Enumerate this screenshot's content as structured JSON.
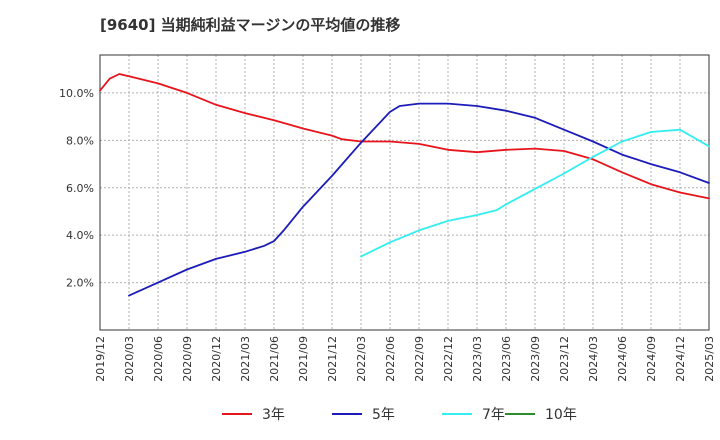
{
  "chart_data": {
    "type": "line",
    "title": "[9640]  当期純利益マージンの平均値の推移",
    "xlabel": "",
    "ylabel": "",
    "ylim": [
      0,
      11.6
    ],
    "y_ticks": [
      {
        "value": 2,
        "label": "2.0%"
      },
      {
        "value": 4,
        "label": "4.0%"
      },
      {
        "value": 6,
        "label": "6.0%"
      },
      {
        "value": 8,
        "label": "8.0%"
      },
      {
        "value": 10,
        "label": "10.0%"
      }
    ],
    "x_tick_labels": [
      "2019/12",
      "2020/03",
      "2020/06",
      "2020/09",
      "2020/12",
      "2021/03",
      "2021/06",
      "2021/09",
      "2021/12",
      "2022/03",
      "2022/06",
      "2022/09",
      "2022/12",
      "2023/03",
      "2023/06",
      "2023/09",
      "2023/12",
      "2024/03",
      "2024/06",
      "2024/09",
      "2024/12",
      "2025/03"
    ],
    "grid": true,
    "legend_position": "bottom",
    "series": [
      {
        "name": "3年",
        "color": "#e8141b",
        "points": [
          [
            "2019/12",
            10.1
          ],
          [
            "2020/01",
            10.6
          ],
          [
            "2020/02",
            10.8
          ],
          [
            "2020/03",
            10.7
          ],
          [
            "2020/06",
            10.4
          ],
          [
            "2020/09",
            10.0
          ],
          [
            "2020/12",
            9.5
          ],
          [
            "2021/03",
            9.15
          ],
          [
            "2021/06",
            8.85
          ],
          [
            "2021/09",
            8.5
          ],
          [
            "2021/12",
            8.2
          ],
          [
            "2022/01",
            8.05
          ],
          [
            "2022/03",
            7.95
          ],
          [
            "2022/06",
            7.95
          ],
          [
            "2022/09",
            7.85
          ],
          [
            "2022/12",
            7.6
          ],
          [
            "2023/03",
            7.5
          ],
          [
            "2023/06",
            7.6
          ],
          [
            "2023/09",
            7.65
          ],
          [
            "2023/12",
            7.55
          ],
          [
            "2024/03",
            7.2
          ],
          [
            "2024/06",
            6.65
          ],
          [
            "2024/09",
            6.15
          ],
          [
            "2024/12",
            5.8
          ],
          [
            "2025/03",
            5.55
          ]
        ]
      },
      {
        "name": "5年",
        "color": "#1c1cb9",
        "points": [
          [
            "2020/03",
            1.45
          ],
          [
            "2020/06",
            2.0
          ],
          [
            "2020/09",
            2.55
          ],
          [
            "2020/12",
            3.0
          ],
          [
            "2021/03",
            3.3
          ],
          [
            "2021/05",
            3.55
          ],
          [
            "2021/06",
            3.75
          ],
          [
            "2021/07",
            4.2
          ],
          [
            "2021/09",
            5.2
          ],
          [
            "2021/12",
            6.5
          ],
          [
            "2022/03",
            7.9
          ],
          [
            "2022/06",
            9.2
          ],
          [
            "2022/07",
            9.45
          ],
          [
            "2022/09",
            9.55
          ],
          [
            "2022/12",
            9.55
          ],
          [
            "2023/03",
            9.45
          ],
          [
            "2023/06",
            9.25
          ],
          [
            "2023/09",
            8.95
          ],
          [
            "2023/12",
            8.45
          ],
          [
            "2024/03",
            7.95
          ],
          [
            "2024/06",
            7.4
          ],
          [
            "2024/09",
            7.0
          ],
          [
            "2024/12",
            6.65
          ],
          [
            "2025/03",
            6.2
          ]
        ]
      },
      {
        "name": "7年",
        "color": "#33eef0",
        "points": [
          [
            "2022/03",
            3.1
          ],
          [
            "2022/06",
            3.7
          ],
          [
            "2022/09",
            4.2
          ],
          [
            "2022/12",
            4.6
          ],
          [
            "2023/03",
            4.85
          ],
          [
            "2023/05",
            5.05
          ],
          [
            "2023/06",
            5.3
          ],
          [
            "2023/09",
            5.95
          ],
          [
            "2023/12",
            6.6
          ],
          [
            "2024/03",
            7.3
          ],
          [
            "2024/06",
            7.95
          ],
          [
            "2024/09",
            8.35
          ],
          [
            "2024/12",
            8.45
          ],
          [
            "2025/03",
            7.75
          ]
        ]
      },
      {
        "name": "10年",
        "color": "#2e8b2e",
        "points": []
      }
    ]
  }
}
